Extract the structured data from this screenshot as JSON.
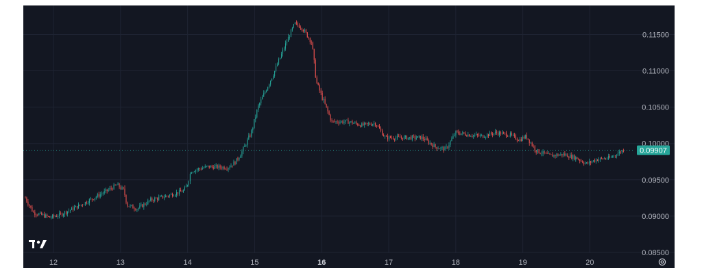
{
  "logo_text": "TV",
  "colors": {
    "background": "#131722",
    "grid": "#1f2433",
    "up": "#26a69a",
    "down": "#ef5350",
    "last_price_badge": "#26a69a",
    "axis_text": "#b2b5be"
  },
  "icons": {
    "settings": "gear-icon",
    "logo": "tradingview-logo-icon"
  },
  "chart_data": {
    "type": "candlestick",
    "title": "",
    "xlabel": "",
    "ylabel": "",
    "ylim": [
      0.0849,
      0.119
    ],
    "xlim": [
      11.55,
      20.65
    ],
    "x_ticks": [
      {
        "value": 12,
        "label": "12"
      },
      {
        "value": 13,
        "label": "13"
      },
      {
        "value": 14,
        "label": "14"
      },
      {
        "value": 15,
        "label": "15"
      },
      {
        "value": 16,
        "label": "16",
        "bold": true
      },
      {
        "value": 17,
        "label": "17"
      },
      {
        "value": 18,
        "label": "18"
      },
      {
        "value": 19,
        "label": "19"
      },
      {
        "value": 20,
        "label": "20"
      }
    ],
    "y_ticks": [
      {
        "value": 0.085,
        "label": "0.08500"
      },
      {
        "value": 0.09,
        "label": "0.09000"
      },
      {
        "value": 0.095,
        "label": "0.09500"
      },
      {
        "value": 0.1,
        "label": "0.10000"
      },
      {
        "value": 0.105,
        "label": "0.10500"
      },
      {
        "value": 0.11,
        "label": "0.11000"
      },
      {
        "value": 0.115,
        "label": "0.11500"
      }
    ],
    "last_price": 0.09907,
    "last_price_label": "0.09907",
    "grid": true,
    "price_path": [
      [
        11.55,
        0.093
      ],
      [
        11.7,
        0.0905
      ],
      [
        11.95,
        0.0898
      ],
      [
        12.1,
        0.0902
      ],
      [
        12.4,
        0.0915
      ],
      [
        12.8,
        0.0935
      ],
      [
        12.95,
        0.0943
      ],
      [
        13.05,
        0.0935
      ],
      [
        13.1,
        0.0915
      ],
      [
        13.25,
        0.091
      ],
      [
        13.45,
        0.0922
      ],
      [
        13.7,
        0.0928
      ],
      [
        13.95,
        0.0935
      ],
      [
        14.0,
        0.0945
      ],
      [
        14.05,
        0.0962
      ],
      [
        14.3,
        0.0968
      ],
      [
        14.6,
        0.0967
      ],
      [
        14.72,
        0.0975
      ],
      [
        14.82,
        0.099
      ],
      [
        14.95,
        0.1015
      ],
      [
        15.05,
        0.105
      ],
      [
        15.3,
        0.11
      ],
      [
        15.5,
        0.1145
      ],
      [
        15.6,
        0.1165
      ],
      [
        15.7,
        0.116
      ],
      [
        15.85,
        0.114
      ],
      [
        15.92,
        0.1085
      ],
      [
        16.0,
        0.1065
      ],
      [
        16.15,
        0.103
      ],
      [
        16.4,
        0.103
      ],
      [
        16.6,
        0.1025
      ],
      [
        16.8,
        0.1028
      ],
      [
        16.95,
        0.1008
      ],
      [
        17.2,
        0.1008
      ],
      [
        17.5,
        0.1008
      ],
      [
        17.7,
        0.0995
      ],
      [
        17.85,
        0.0992
      ],
      [
        18.0,
        0.1015
      ],
      [
        18.2,
        0.1012
      ],
      [
        18.4,
        0.101
      ],
      [
        18.6,
        0.1015
      ],
      [
        18.8,
        0.1012
      ],
      [
        18.95,
        0.1005
      ],
      [
        19.05,
        0.101
      ],
      [
        19.2,
        0.099
      ],
      [
        19.4,
        0.0983
      ],
      [
        19.6,
        0.0985
      ],
      [
        19.8,
        0.098
      ],
      [
        19.95,
        0.0972
      ],
      [
        20.1,
        0.0978
      ],
      [
        20.3,
        0.098
      ],
      [
        20.5,
        0.0991
      ]
    ]
  }
}
